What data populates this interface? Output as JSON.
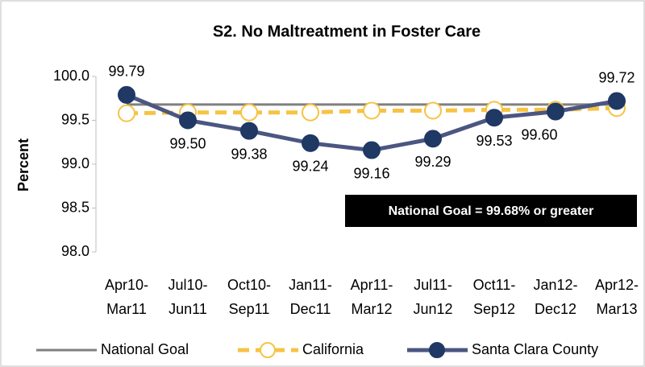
{
  "chart_data": {
    "type": "line",
    "title": "S2. No Maltreatment in Foster Care",
    "y_label": "Percent",
    "categories": [
      "Apr10-Mar11",
      "Jul10-Jun11",
      "Oct10-Sep11",
      "Jan11-Dec11",
      "Apr11-Mar12",
      "Jul11-Jun12",
      "Oct11-Sep12",
      "Jan12-Dec12",
      "Apr12-Mar13"
    ],
    "ylim": [
      98.0,
      100.0
    ],
    "yticks": [
      {
        "value": 98.0,
        "label": "98.0"
      },
      {
        "value": 98.5,
        "label": "98.5"
      },
      {
        "value": 99.0,
        "label": "99.0"
      },
      {
        "value": 99.5,
        "label": "99.5"
      },
      {
        "value": 100.0,
        "label": "100.0"
      }
    ],
    "annotation": "National Goal = 99.68% or greater",
    "legend": "bottom",
    "series": [
      {
        "name": "National Goal",
        "color": "#808080",
        "values": [
          99.68,
          99.68,
          99.68,
          99.68,
          99.68,
          99.68,
          99.68,
          99.68,
          99.68
        ]
      },
      {
        "name": "California",
        "color": "#f6c343",
        "dashed": true,
        "marker_fill": "#ffffff",
        "values": [
          99.58,
          99.59,
          99.59,
          99.59,
          99.61,
          99.61,
          99.62,
          99.62,
          99.64
        ]
      },
      {
        "name": "Santa Clara County",
        "color": "#4b5681",
        "marker_fill": "#1f3864",
        "values": [
          99.79,
          99.5,
          99.38,
          99.24,
          99.16,
          99.29,
          99.53,
          99.6,
          99.72
        ],
        "value_labels": [
          "99.79",
          "99.50",
          "99.38",
          "99.24",
          "99.16",
          "99.29",
          "99.53",
          "99.60",
          "99.72"
        ]
      }
    ]
  }
}
